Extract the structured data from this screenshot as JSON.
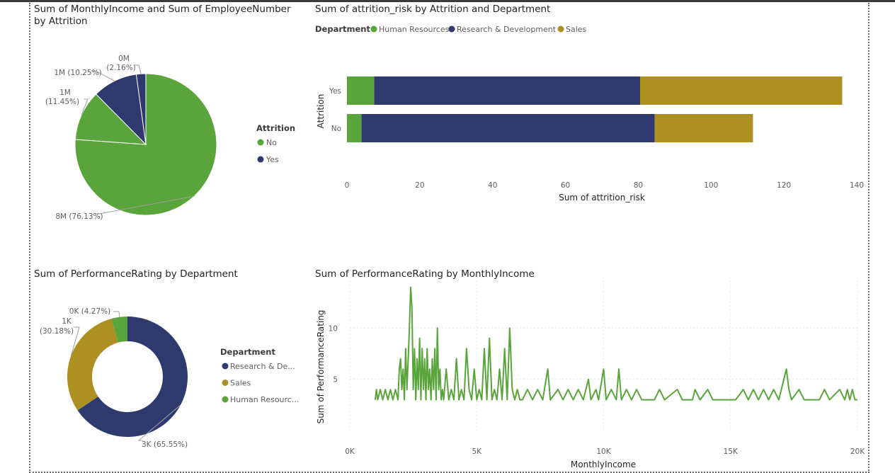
{
  "colors": {
    "no": "#5aa53b",
    "yes": "#2e3a6e",
    "human_resources": "#5aa53b",
    "research_development": "#2e3a6e",
    "sales": "#ad9022"
  },
  "chart_data": [
    {
      "id": "pie",
      "type": "pie",
      "title": "Sum of MonthlyIncome and Sum of EmployeeNumber by Attrition",
      "legend": {
        "title": "Attrition",
        "position": "right",
        "items": [
          "No",
          "Yes"
        ]
      },
      "slices": [
        {
          "series": "Sum of MonthlyIncome",
          "attrition": "No",
          "label": "8M (76.13%)",
          "percent": 76.13,
          "color": "#5aa53b"
        },
        {
          "series": "Sum of EmployeeNumber",
          "attrition": "No",
          "label": "1M (11.45%)",
          "percent": 11.45,
          "color": "#5aa53b"
        },
        {
          "series": "Sum of MonthlyIncome",
          "attrition": "Yes",
          "label": "1M (10.25%)",
          "percent": 10.25,
          "color": "#2e3a6e"
        },
        {
          "series": "Sum of EmployeeNumber",
          "attrition": "Yes",
          "label": "0M (2.16%)",
          "percent": 2.16,
          "color": "#2e3a6e"
        }
      ]
    },
    {
      "id": "bar",
      "type": "bar",
      "orientation": "horizontal",
      "stacked": true,
      "title": "Sum of attrition_risk by Attrition and Department",
      "legend": {
        "title": "Department",
        "position": "top-left",
        "items": [
          "Human Resources",
          "Research & Development",
          "Sales"
        ]
      },
      "categories": [
        "Yes",
        "No"
      ],
      "series": [
        {
          "name": "Human Resources",
          "values": [
            7.5,
            4
          ],
          "color": "#5aa53b"
        },
        {
          "name": "Research & Development",
          "values": [
            73,
            80.5
          ],
          "color": "#2e3a6e"
        },
        {
          "name": "Sales",
          "values": [
            55.5,
            27
          ],
          "color": "#ad9022"
        }
      ],
      "xlabel": "Sum of attrition_risk",
      "ylabel": "Attrition",
      "xlim": [
        0,
        140
      ],
      "xticks": [
        "0",
        "20",
        "40",
        "60",
        "80",
        "100",
        "120",
        "140"
      ],
      "grid": false
    },
    {
      "id": "donut",
      "type": "pie",
      "variant": "donut",
      "title": "Sum of PerformanceRating by Department",
      "legend": {
        "title": "Department",
        "position": "right",
        "items": [
          "Research & De...",
          "Sales",
          "Human Resourc..."
        ]
      },
      "slices": [
        {
          "department": "Research & Development",
          "label": "3K (65.55%)",
          "percent": 65.55,
          "color": "#2e3a6e"
        },
        {
          "department": "Sales",
          "label": "1K (30.18%)",
          "percent": 30.18,
          "color": "#ad9022"
        },
        {
          "department": "Human Resources",
          "label": "0K (4.27%)",
          "percent": 4.27,
          "color": "#5aa53b"
        }
      ]
    },
    {
      "id": "line",
      "type": "line",
      "title": "Sum of PerformanceRating by MonthlyIncome",
      "xlabel": "MonthlyIncome",
      "ylabel": "Sum of PerformanceRating",
      "xlim": [
        0,
        20000
      ],
      "ylim": [
        0,
        15
      ],
      "xticks": [
        "0K",
        "5K",
        "10K",
        "15K",
        "20K"
      ],
      "yticks": [
        "5",
        "10"
      ],
      "grid": true,
      "color": "#5aa53b",
      "series": [
        {
          "values": [
            [
              1000,
              3
            ],
            [
              1050,
              4
            ],
            [
              1100,
              3
            ],
            [
              1200,
              4
            ],
            [
              1300,
              3
            ],
            [
              1400,
              4
            ],
            [
              1500,
              3
            ],
            [
              1600,
              4
            ],
            [
              1700,
              3
            ],
            [
              1800,
              4
            ],
            [
              1900,
              3
            ],
            [
              1950,
              6
            ],
            [
              2000,
              7
            ],
            [
              2050,
              4
            ],
            [
              2100,
              6
            ],
            [
              2150,
              3
            ],
            [
              2200,
              8
            ],
            [
              2250,
              4
            ],
            [
              2300,
              7
            ],
            [
              2350,
              10
            ],
            [
              2400,
              14
            ],
            [
              2450,
              12
            ],
            [
              2500,
              4
            ],
            [
              2550,
              8
            ],
            [
              2600,
              3
            ],
            [
              2650,
              7
            ],
            [
              2700,
              4
            ],
            [
              2750,
              9
            ],
            [
              2800,
              3
            ],
            [
              2850,
              8
            ],
            [
              2900,
              4
            ],
            [
              2950,
              7
            ],
            [
              3000,
              3
            ],
            [
              3050,
              8
            ],
            [
              3100,
              4
            ],
            [
              3150,
              6
            ],
            [
              3200,
              3
            ],
            [
              3250,
              7
            ],
            [
              3300,
              4
            ],
            [
              3350,
              8
            ],
            [
              3400,
              3
            ],
            [
              3450,
              10
            ],
            [
              3500,
              4
            ],
            [
              3550,
              6
            ],
            [
              3600,
              3
            ],
            [
              3650,
              4
            ],
            [
              3700,
              3
            ],
            [
              3800,
              6
            ],
            [
              3900,
              3
            ],
            [
              4000,
              4
            ],
            [
              4100,
              3
            ],
            [
              4200,
              7
            ],
            [
              4300,
              3
            ],
            [
              4400,
              4
            ],
            [
              4500,
              3
            ],
            [
              4600,
              8
            ],
            [
              4700,
              4
            ],
            [
              4800,
              3
            ],
            [
              4900,
              6
            ],
            [
              5000,
              3
            ],
            [
              5100,
              4
            ],
            [
              5200,
              3
            ],
            [
              5300,
              8
            ],
            [
              5400,
              3
            ],
            [
              5500,
              9
            ],
            [
              5600,
              3
            ],
            [
              5700,
              4
            ],
            [
              5800,
              3
            ],
            [
              5900,
              6
            ],
            [
              6000,
              3
            ],
            [
              6100,
              8
            ],
            [
              6200,
              3
            ],
            [
              6300,
              10
            ],
            [
              6400,
              4
            ],
            [
              6500,
              3
            ],
            [
              6600,
              4
            ],
            [
              6700,
              3
            ],
            [
              6800,
              3
            ],
            [
              7000,
              4
            ],
            [
              7200,
              3
            ],
            [
              7400,
              4
            ],
            [
              7600,
              3
            ],
            [
              7800,
              6
            ],
            [
              7900,
              3
            ],
            [
              8200,
              4
            ],
            [
              8400,
              3
            ],
            [
              8600,
              4
            ],
            [
              8800,
              3
            ],
            [
              9000,
              4
            ],
            [
              9200,
              3
            ],
            [
              9400,
              5
            ],
            [
              9500,
              3
            ],
            [
              9700,
              4
            ],
            [
              9800,
              3
            ],
            [
              10000,
              6
            ],
            [
              10100,
              3
            ],
            [
              10300,
              4
            ],
            [
              10500,
              3
            ],
            [
              10600,
              6
            ],
            [
              10700,
              3
            ],
            [
              10900,
              4
            ],
            [
              11100,
              3
            ],
            [
              11300,
              4
            ],
            [
              11500,
              3
            ],
            [
              12000,
              3
            ],
            [
              12200,
              4
            ],
            [
              12400,
              3
            ],
            [
              12900,
              4
            ],
            [
              13100,
              3
            ],
            [
              13500,
              3
            ],
            [
              13600,
              4
            ],
            [
              13800,
              3
            ],
            [
              14100,
              4
            ],
            [
              14300,
              3
            ],
            [
              15200,
              3
            ],
            [
              15500,
              4
            ],
            [
              15700,
              3
            ],
            [
              15900,
              4
            ],
            [
              16100,
              3
            ],
            [
              16300,
              4
            ],
            [
              16500,
              3
            ],
            [
              16700,
              4
            ],
            [
              16900,
              3
            ],
            [
              17100,
              5
            ],
            [
              17200,
              6
            ],
            [
              17300,
              4
            ],
            [
              17400,
              3
            ],
            [
              17700,
              4
            ],
            [
              17900,
              3
            ],
            [
              18500,
              3
            ],
            [
              18700,
              4
            ],
            [
              18900,
              3
            ],
            [
              19300,
              4
            ],
            [
              19500,
              3
            ],
            [
              19600,
              4
            ],
            [
              19700,
              3
            ],
            [
              19800,
              4
            ],
            [
              19900,
              3
            ],
            [
              20000,
              3
            ]
          ]
        }
      ]
    }
  ]
}
